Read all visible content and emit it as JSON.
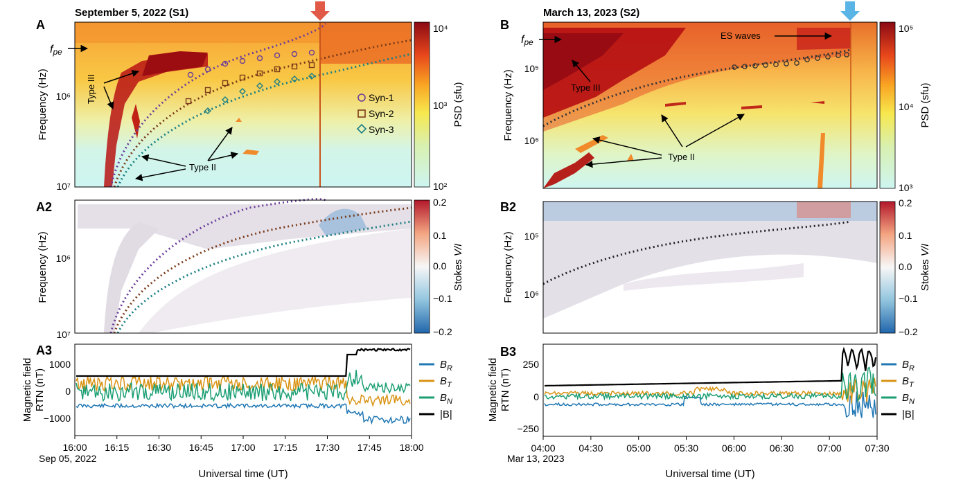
{
  "chart_data": [
    {
      "id": "A",
      "type": "heatmap",
      "panel_label": "A",
      "title": "September 5, 2022 (S1)",
      "ylabel": "Frequency (Hz)",
      "y_scale": "log-inverted",
      "y_ticks": [
        "10⁶",
        "10⁷"
      ],
      "colorbar": {
        "label": "PSD (sfu)",
        "ticks": [
          "10⁴",
          "10³",
          "10²"
        ],
        "colormap": "YlOrRd-to-cyan"
      },
      "annotations": {
        "fpe": "f",
        "fpe_sub": "pe",
        "type3": "Type III",
        "type2": "Type II"
      },
      "legend": [
        {
          "name": "Syn-1",
          "color": "#6a3d9a",
          "marker": "circle"
        },
        {
          "name": "Syn-2",
          "color": "#7a3b1a",
          "marker": "square"
        },
        {
          "name": "Syn-3",
          "color": "#1b7f84",
          "marker": "diamond"
        }
      ],
      "arrow_color": "#e05a47"
    },
    {
      "id": "A2",
      "type": "heatmap",
      "panel_label": "A2",
      "ylabel": "Frequency (Hz)",
      "y_ticks": [
        "10⁶",
        "10⁷"
      ],
      "colorbar": {
        "label": "Stokes V/I",
        "label_main": "Stokes ",
        "label_italic": "V/I",
        "ticks": [
          "0.2",
          "0.1",
          "0.0",
          "−0.1",
          "−0.2"
        ],
        "colormap": "RdBu"
      }
    },
    {
      "id": "A3",
      "type": "line",
      "panel_label": "A3",
      "ylabel": "Magnetic field",
      "ylabel2": "RTN (nT)",
      "y_ticks": [
        "1000",
        "0",
        "−1000"
      ],
      "ylim": [
        -1600,
        1800
      ],
      "x_ticks": [
        "16:00",
        "16:15",
        "16:30",
        "16:45",
        "17:00",
        "17:15",
        "17:30",
        "17:45",
        "18:00"
      ],
      "x_sub": "Sep 05, 2022",
      "xlabel": "Universal time (UT)",
      "series": [
        {
          "name": "B",
          "sub": "R",
          "color": "#1f77b4"
        },
        {
          "name": "B",
          "sub": "T",
          "color": "#d99313"
        },
        {
          "name": "B",
          "sub": "N",
          "color": "#1a9e73"
        },
        {
          "name": "|B|",
          "sub": "",
          "color": "#000000"
        }
      ]
    },
    {
      "id": "B",
      "type": "heatmap",
      "panel_label": "B",
      "title": "March 13, 2023 (S2)",
      "ylabel": "Frequency (Hz)",
      "y_ticks": [
        "10⁵",
        "10⁶"
      ],
      "colorbar": {
        "label": "PSD (sfu)",
        "ticks": [
          "10⁵",
          "10⁴",
          "10³"
        ],
        "colormap": "YlOrRd-to-cyan"
      },
      "annotations": {
        "fpe": "f",
        "fpe_sub": "pe",
        "type3": "Type III",
        "type2": "Type II",
        "es": "ES waves"
      },
      "arrow_color": "#5ab4e5"
    },
    {
      "id": "B2",
      "type": "heatmap",
      "panel_label": "B2",
      "ylabel": "Frequency (Hz)",
      "y_ticks": [
        "10⁵",
        "10⁶"
      ],
      "colorbar": {
        "label": "Stokes V/I",
        "label_main": "Stokes ",
        "label_italic": "V/I",
        "ticks": [
          "0.2",
          "0.1",
          "0.0",
          "−0.1",
          "−0.2"
        ],
        "colormap": "RdBu"
      }
    },
    {
      "id": "B3",
      "type": "line",
      "panel_label": "B3",
      "ylabel": "Magnetic field",
      "ylabel2": "RTN (nT)",
      "y_ticks": [
        "250",
        "0",
        "−250"
      ],
      "ylim": [
        -290,
        420
      ],
      "x_ticks": [
        "04:00",
        "04:30",
        "05:00",
        "05:30",
        "06:00",
        "06:30",
        "07:00",
        "07:30"
      ],
      "x_sub": "Mar 13, 2023",
      "xlabel": "Universal time (UT)",
      "series": [
        {
          "name": "B",
          "sub": "R",
          "color": "#1f77b4"
        },
        {
          "name": "B",
          "sub": "T",
          "color": "#d99313"
        },
        {
          "name": "B",
          "sub": "N",
          "color": "#1a9e73"
        },
        {
          "name": "|B|",
          "sub": "",
          "color": "#000000"
        }
      ]
    }
  ]
}
